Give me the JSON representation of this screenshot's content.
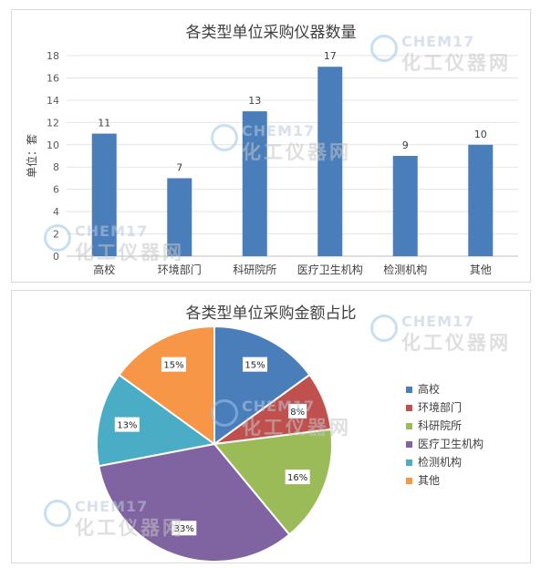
{
  "colors": {
    "bar": "#4a7ebb",
    "slices": [
      "#4a7ebb",
      "#c0504d",
      "#9bbb59",
      "#8064a2",
      "#4bacc6",
      "#f79646"
    ]
  },
  "watermark": {
    "brand_top": "CHEM17",
    "brand_bottom": "化工仪器网",
    "icon": "chem17-logo-icon"
  },
  "chart_data": [
    {
      "type": "bar",
      "title": "各类型单位采购仪器数量",
      "ylabel": "单位：套",
      "xlabel": "",
      "categories": [
        "高校",
        "环境部门",
        "科研院所",
        "医疗卫生机构",
        "检测机构",
        "其他"
      ],
      "values": [
        11,
        7,
        13,
        17,
        9,
        10
      ],
      "data_labels": [
        "11",
        "7",
        "13",
        "17",
        "9",
        "10"
      ],
      "ylim": [
        0,
        18
      ],
      "yticks": [
        0,
        2,
        4,
        6,
        8,
        10,
        12,
        14,
        16,
        18
      ],
      "grid": true,
      "legend": "none"
    },
    {
      "type": "pie",
      "title": "各类型单位采购金额占比",
      "categories": [
        "高校",
        "环境部门",
        "科研院所",
        "医疗卫生机构",
        "检测机构",
        "其他"
      ],
      "values": [
        15,
        8,
        16,
        33,
        13,
        15
      ],
      "data_labels": [
        "15%",
        "8%",
        "16%",
        "33%",
        "13%",
        "15%"
      ],
      "legend": "right"
    }
  ]
}
